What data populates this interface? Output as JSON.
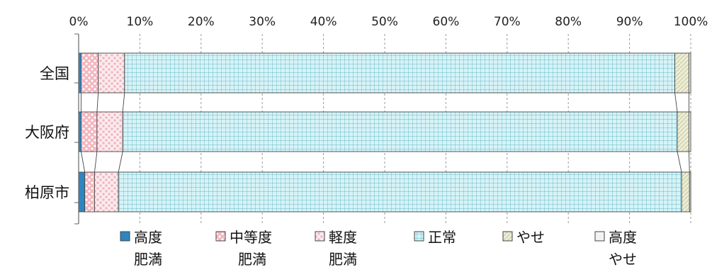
{
  "chart_data": {
    "type": "bar",
    "orientation": "horizontal",
    "stacked": true,
    "percent": true,
    "categories": [
      "全国",
      "大阪府",
      "柏原市"
    ],
    "x_ticks": [
      "0%",
      "10%",
      "20%",
      "30%",
      "40%",
      "50%",
      "60%",
      "70%",
      "80%",
      "90%",
      "100%"
    ],
    "xlim": [
      0,
      100
    ],
    "grid": true,
    "legend_position": "bottom",
    "series": [
      {
        "name": "高度肥満",
        "legend": [
          "高度",
          "肥満"
        ],
        "values": [
          0.4,
          0.4,
          1.0
        ],
        "color": "#2e86c1",
        "pattern": "solid"
      },
      {
        "name": "中等度肥満",
        "legend": [
          "中等度",
          "肥満"
        ],
        "values": [
          2.8,
          2.6,
          1.6
        ],
        "color": "#f4b6bf",
        "pattern": "dots"
      },
      {
        "name": "軽度肥満",
        "legend": [
          "軽度",
          "肥満"
        ],
        "values": [
          4.3,
          4.2,
          3.9
        ],
        "color": "#f7dde2",
        "pattern": "dots-light"
      },
      {
        "name": "正常",
        "legend": [
          "正常"
        ],
        "values": [
          89.9,
          90.6,
          92.0
        ],
        "color": "#d7f3f7",
        "pattern": "grid"
      },
      {
        "name": "やせ",
        "legend": [
          "やせ"
        ],
        "values": [
          2.3,
          1.9,
          1.3
        ],
        "color": "#ecedd6",
        "pattern": "hatch"
      },
      {
        "name": "高度やせ",
        "legend": [
          "高度",
          "やせ"
        ],
        "values": [
          0.3,
          0.3,
          0.2
        ],
        "color": "#f3f3f3",
        "pattern": "plain"
      }
    ]
  }
}
